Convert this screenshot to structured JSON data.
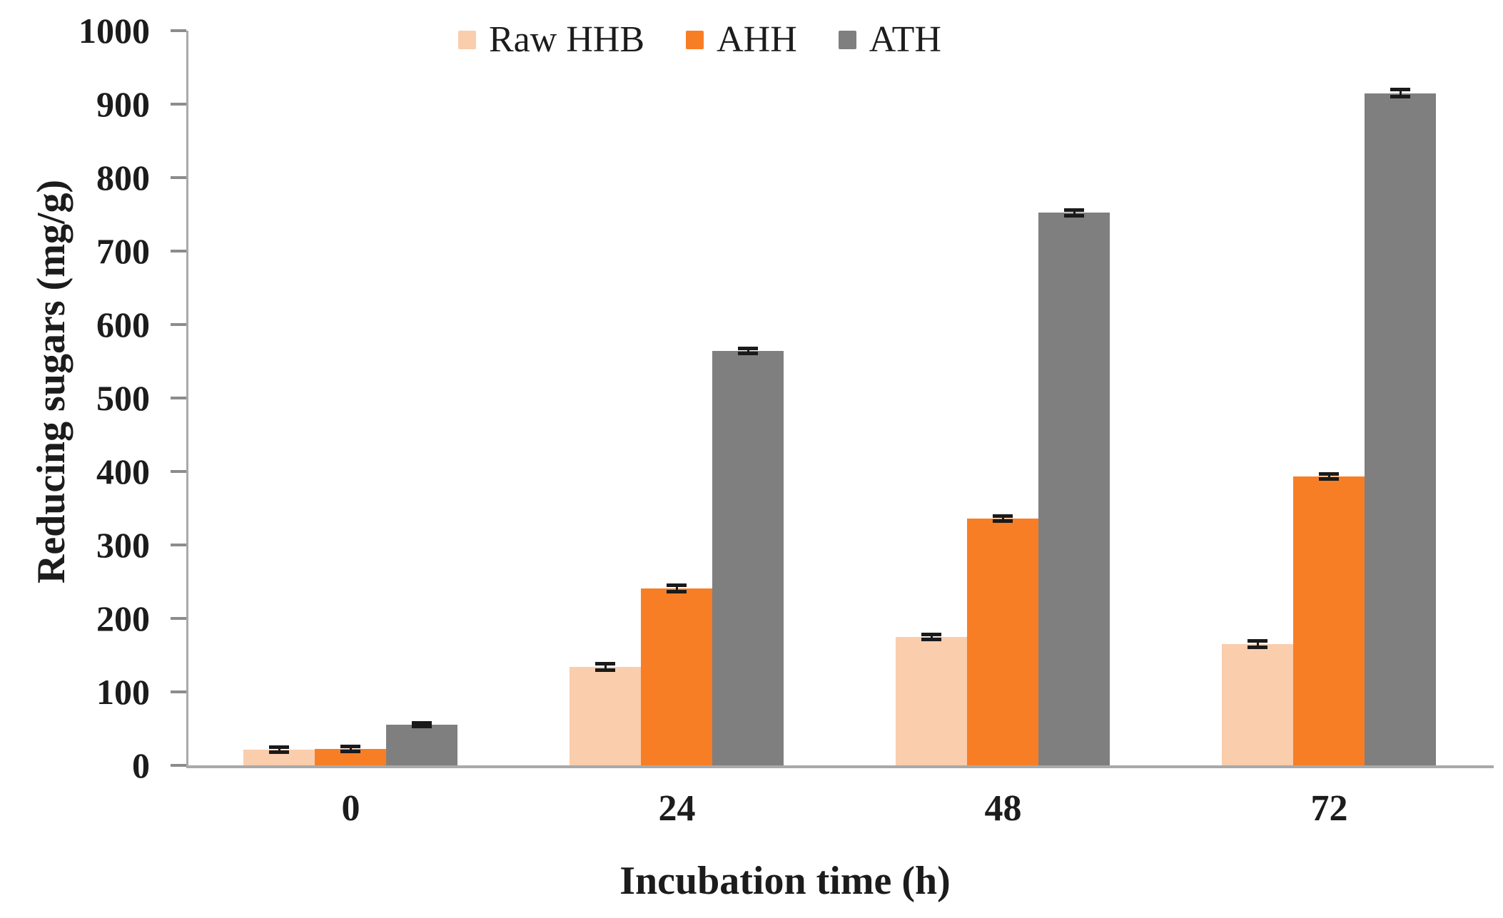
{
  "chart_data": {
    "type": "bar",
    "title": "",
    "categories": [
      "0",
      "24",
      "48",
      "72"
    ],
    "series": [
      {
        "name": "Raw HHB",
        "color": "#FACDAC",
        "values": [
          21,
          134,
          175,
          165
        ],
        "errors": [
          4,
          5,
          4,
          5
        ]
      },
      {
        "name": "AHH",
        "color": "#F87E26",
        "values": [
          22,
          241,
          336,
          393
        ],
        "errors": [
          4,
          5,
          4,
          4
        ]
      },
      {
        "name": "ATH",
        "color": "#7F7F7F",
        "values": [
          55,
          564,
          752,
          915
        ],
        "errors": [
          3,
          4,
          4,
          5
        ]
      }
    ],
    "xlabel": "Incubation time (h)",
    "ylabel": "Reducing sugars (mg/g)",
    "ylim": [
      0,
      1000
    ],
    "yticks": [
      "0",
      "100",
      "200",
      "300",
      "400",
      "500",
      "600",
      "700",
      "800",
      "900",
      "1000"
    ],
    "grid": false,
    "legend_position": "top-center",
    "error_bar_color": "#1a1a1a",
    "axis_line_color": "#a9a9a9",
    "tick_mark_color": "#8c8c8c",
    "text_color": "#1c1c1c"
  }
}
